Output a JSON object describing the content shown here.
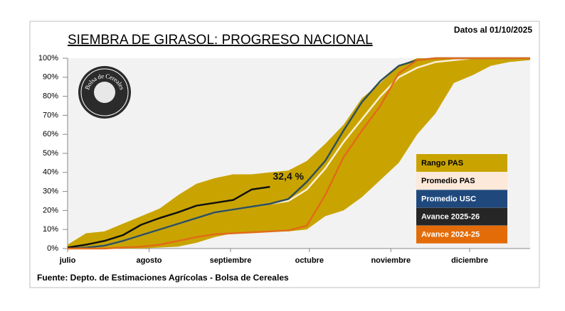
{
  "chart_data": {
    "type": "line",
    "title": "SIEMBRA DE GIRASOL: PROGRESO NACIONAL",
    "date_note": "Datos al 01/10/2025",
    "source": "Fuente: Depto. de Estimaciones Agrícolas - Bolsa de Cereales",
    "logo_text": "Bolsa de Cereales",
    "x": [
      0,
      7,
      14,
      21,
      28,
      35,
      42,
      49,
      56,
      63,
      70,
      77,
      84,
      91,
      98,
      105,
      112,
      119,
      126,
      133,
      140,
      147,
      154,
      161,
      168,
      176
    ],
    "xlim": [
      0,
      176
    ],
    "xticks": [
      {
        "value": 0,
        "label": "julio"
      },
      {
        "value": 31,
        "label": "agosto"
      },
      {
        "value": 62,
        "label": "septiembre"
      },
      {
        "value": 92,
        "label": "octubre"
      },
      {
        "value": 123,
        "label": "noviembre"
      },
      {
        "value": 153,
        "label": "diciembre"
      }
    ],
    "ylim": [
      0,
      100
    ],
    "yticks": [
      {
        "value": 0,
        "label": "0%"
      },
      {
        "value": 10,
        "label": "10%"
      },
      {
        "value": 20,
        "label": "20%"
      },
      {
        "value": 30,
        "label": "30%"
      },
      {
        "value": 40,
        "label": "40%"
      },
      {
        "value": 50,
        "label": "50%"
      },
      {
        "value": 60,
        "label": "60%"
      },
      {
        "value": 70,
        "label": "70%"
      },
      {
        "value": 80,
        "label": "80%"
      },
      {
        "value": 90,
        "label": "90%"
      },
      {
        "value": 100,
        "label": "100%"
      }
    ],
    "series": [
      {
        "name": "Rango PAS",
        "color": "#c9a400",
        "kind": "range",
        "low": [
          0,
          0,
          0,
          0,
          0,
          0.5,
          1,
          3,
          6,
          8,
          8.5,
          9,
          9,
          10,
          17,
          20,
          27,
          36,
          45,
          60,
          71,
          87,
          91,
          96,
          98,
          99
        ],
        "high": [
          2,
          8,
          9,
          13,
          17,
          21,
          28,
          34,
          37,
          39,
          39,
          40,
          41,
          46,
          55,
          65,
          79,
          87,
          96,
          100,
          100,
          100,
          100,
          100,
          100,
          100
        ]
      },
      {
        "name": "Promedio PAS",
        "color": "#fdf0d8",
        "legend_color": "#fde9d9",
        "text_color": "#000000",
        "values": [
          0,
          0.5,
          1.5,
          4,
          7,
          10,
          13,
          16,
          19,
          20.5,
          22,
          23.5,
          25,
          31,
          42,
          56,
          68,
          80,
          90,
          95,
          98,
          99,
          100,
          100,
          100,
          100
        ]
      },
      {
        "name": "Promedio USC",
        "color": "#2f4f5a",
        "legend_color": "#1f497d",
        "text_color": "#ffffff",
        "values": [
          0,
          0.5,
          1.5,
          4,
          7,
          10,
          13,
          16,
          19,
          20.5,
          22,
          23.5,
          26,
          35,
          46,
          62,
          77,
          88,
          96,
          99,
          100,
          100,
          100,
          100,
          100,
          100
        ]
      },
      {
        "name": "Avance 2025-26",
        "color": "#111111",
        "legend_color": "#262626",
        "text_color": "#ffffff",
        "values": [
          0.5,
          2,
          4,
          7,
          12.5,
          16,
          19,
          22.5,
          24,
          25.5,
          31,
          32.4,
          null,
          null,
          null,
          null,
          null,
          null,
          null,
          null,
          null,
          null,
          null,
          null,
          null,
          null
        ],
        "value_labels": [
          null,
          null,
          null,
          null,
          null,
          null,
          null,
          null,
          null,
          null,
          null,
          "32,4 %",
          null,
          null,
          null,
          null,
          null,
          null,
          null,
          null,
          null,
          null,
          null,
          null,
          null,
          null
        ]
      },
      {
        "name": "Avance 2024-25",
        "color": "#e06c1a",
        "legend_color": "#e36c09",
        "text_color": "#ffffff",
        "values": [
          0,
          0,
          0,
          0.5,
          1,
          2,
          4,
          6,
          7.5,
          8,
          8.5,
          9,
          9.5,
          12,
          28,
          48,
          62,
          75,
          92,
          99,
          100,
          100,
          100,
          100,
          100,
          100
        ]
      }
    ]
  }
}
